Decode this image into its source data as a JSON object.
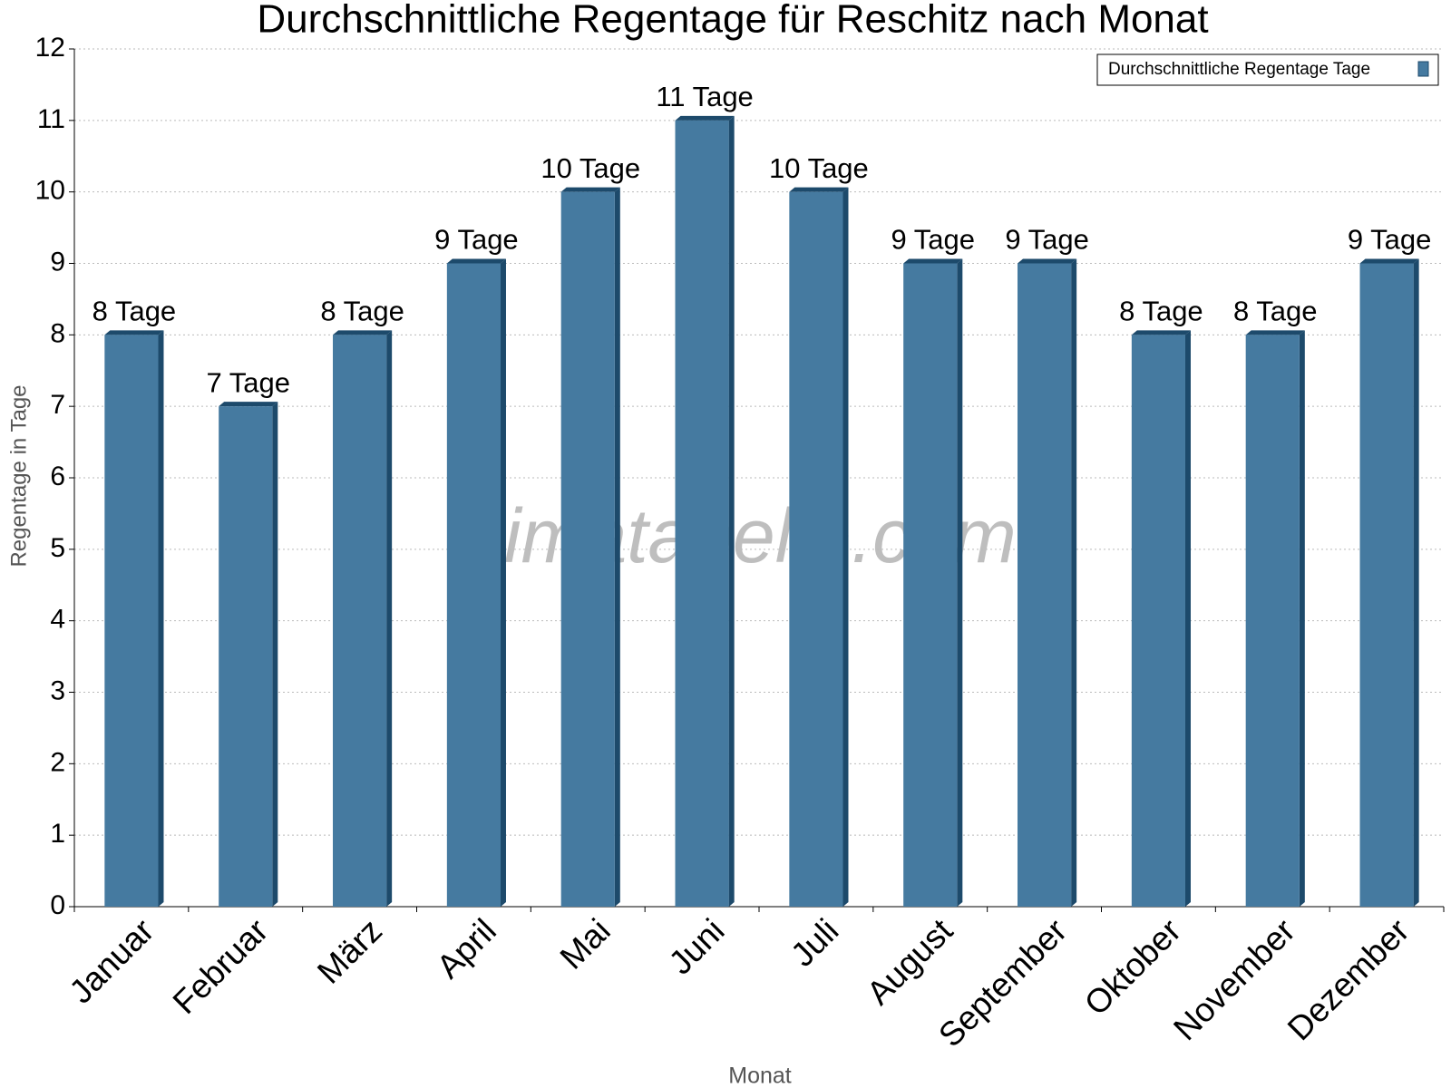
{
  "chart_data": {
    "type": "bar",
    "title": "Durchschnittliche Regentage für Reschitz nach Monat",
    "x_label": "Monat",
    "y_label": "Regentage in Tage",
    "watermark": "klimatabelle.com",
    "categories": [
      "Januar",
      "Februar",
      "März",
      "April",
      "Mai",
      "Juni",
      "Juli",
      "August",
      "September",
      "Oktober",
      "November",
      "Dezember"
    ],
    "series": [
      {
        "name": "Durchschnittliche Regentage Tage",
        "color": "#457aa0",
        "values": [
          8,
          7,
          8,
          9,
          10,
          11,
          10,
          9,
          9,
          8,
          8,
          9
        ],
        "value_labels": [
          "8 Tage",
          "7 Tage",
          "8 Tage",
          "9 Tage",
          "10 Tage",
          "11 Tage",
          "10 Tage",
          "9 Tage",
          "9 Tage",
          "8 Tage",
          "8 Tage",
          "9 Tage"
        ]
      }
    ],
    "ylim": [
      0,
      12
    ],
    "yticks": [
      0,
      1,
      2,
      3,
      4,
      5,
      6,
      7,
      8,
      9,
      10,
      11,
      12
    ],
    "grid": true,
    "legend": "top-right"
  }
}
